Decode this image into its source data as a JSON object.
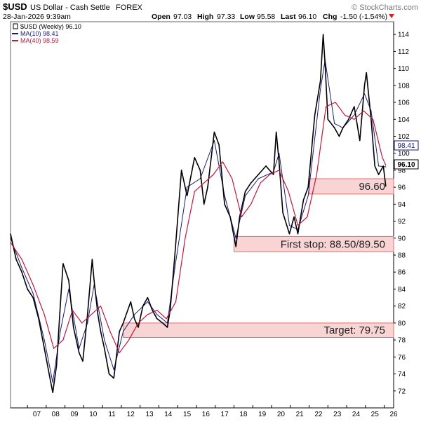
{
  "header": {
    "symbol": "$USD",
    "name": "US Dollar - Cash Settle",
    "exchange": "FOREX",
    "watermark": "© StockCharts.com",
    "date": "28-Jan-2026 9:39am",
    "open_label": "Open",
    "open": "97.03",
    "high_label": "High",
    "high": "97.33",
    "low_label": "Low",
    "low": "95.58",
    "last_label": "Last",
    "last": "96.10",
    "chg_label": "Chg",
    "chg": "-1.50 (-1.54%)"
  },
  "legend": [
    {
      "label": "$USD (Weekly) 96.10",
      "color": "#000000"
    },
    {
      "label": "MA(10) 98.41",
      "color": "#1a1a7a"
    },
    {
      "label": "MA(40) 98.59",
      "color": "#c0183c"
    }
  ],
  "price_tags": {
    "ma": "98.41",
    "last": "96.10"
  },
  "colors": {
    "price": "#000000",
    "ma10": "#1a1a7a",
    "ma40": "#c0183c",
    "band_fill": "#f8d4d4",
    "band_stroke": "#e46a6a",
    "down": "#d42020"
  },
  "chart_data": {
    "type": "line",
    "title": "$USD US Dollar - Cash Settle FOREX",
    "ylim": [
      70,
      115.5
    ],
    "xlim": [
      2006.1,
      2026.5
    ],
    "y_ticks": [
      "72",
      "74",
      "76",
      "78",
      "80",
      "82",
      "84",
      "86",
      "88",
      "90",
      "92",
      "94",
      "96",
      "98",
      "100",
      "102",
      "104",
      "106",
      "108",
      "110",
      "112",
      "114"
    ],
    "x_ticks": [
      {
        "label": "07",
        "x": 2007.0
      },
      {
        "label": "08",
        "x": 2008.0
      },
      {
        "label": "09",
        "x": 2009.0
      },
      {
        "label": "10",
        "x": 2010.0
      },
      {
        "label": "11",
        "x": 2011.0
      },
      {
        "label": "12",
        "x": 2012.0
      },
      {
        "label": "13",
        "x": 2013.0
      },
      {
        "label": "14",
        "x": 2014.0
      },
      {
        "label": "15",
        "x": 2015.0
      },
      {
        "label": "16",
        "x": 2016.0
      },
      {
        "label": "17",
        "x": 2017.0
      },
      {
        "label": "18",
        "x": 2018.0
      },
      {
        "label": "19",
        "x": 2019.0
      },
      {
        "label": "20",
        "x": 2020.0
      },
      {
        "label": "21",
        "x": 2021.0
      },
      {
        "label": "22",
        "x": 2022.0
      },
      {
        "label": "23",
        "x": 2023.0
      },
      {
        "label": "24",
        "x": 2024.0
      },
      {
        "label": "25",
        "x": 2025.0
      },
      {
        "label": "26",
        "x": 2026.0
      }
    ],
    "series": [
      {
        "name": "$USD (Weekly)",
        "x": [
          2006.1,
          2006.4,
          2006.7,
          2007.0,
          2007.3,
          2007.6,
          2007.9,
          2008.2,
          2008.35,
          2008.55,
          2008.75,
          2008.9,
          2009.2,
          2009.45,
          2009.75,
          2009.95,
          2010.2,
          2010.45,
          2010.55,
          2010.75,
          2010.9,
          2011.1,
          2011.35,
          2011.6,
          2011.9,
          2012.1,
          2012.5,
          2012.7,
          2012.9,
          2013.15,
          2013.4,
          2013.65,
          2013.9,
          2014.2,
          2014.45,
          2014.6,
          2014.85,
          2015.2,
          2015.5,
          2015.9,
          2016.2,
          2016.4,
          2016.6,
          2016.95,
          2017.2,
          2017.5,
          2017.8,
          2018.1,
          2018.3,
          2018.6,
          2018.9,
          2019.3,
          2019.7,
          2020.1,
          2020.25,
          2020.4,
          2020.6,
          2020.95,
          2021.2,
          2021.4,
          2021.7,
          2021.95,
          2022.3,
          2022.6,
          2022.75,
          2022.85,
          2023.0,
          2023.35,
          2023.6,
          2023.8,
          2024.1,
          2024.4,
          2024.7,
          2024.95,
          2025.05,
          2025.3,
          2025.5,
          2025.7,
          2025.95,
          2026.08
        ],
        "values": [
          90.5,
          87.5,
          86.0,
          84.0,
          83.0,
          80.5,
          77.0,
          73.5,
          71.8,
          75.0,
          82.0,
          87.0,
          85.0,
          79.5,
          76.5,
          75.5,
          81.0,
          87.5,
          85.0,
          81.0,
          79.0,
          77.0,
          74.0,
          73.5,
          79.0,
          80.0,
          82.5,
          80.5,
          79.5,
          82.0,
          83.0,
          81.5,
          80.5,
          80.0,
          79.5,
          81.5,
          88.0,
          98.0,
          95.0,
          99.5,
          98.0,
          94.0,
          96.0,
          102.5,
          101.0,
          94.0,
          92.5,
          89.0,
          92.5,
          95.5,
          96.5,
          97.5,
          98.5,
          97.5,
          102.5,
          99.0,
          93.0,
          90.5,
          92.5,
          90.5,
          94.5,
          96.0,
          104.5,
          108.5,
          114.0,
          110.5,
          104.0,
          103.0,
          102.0,
          103.0,
          104.0,
          105.5,
          101.5,
          108.0,
          109.5,
          104.0,
          98.5,
          97.5,
          98.5,
          96.1
        ]
      },
      {
        "name": "MA(10)",
        "x": [
          2006.1,
          2006.7,
          2007.3,
          2007.9,
          2008.35,
          2008.75,
          2009.2,
          2009.75,
          2010.2,
          2010.55,
          2011.1,
          2011.6,
          2012.1,
          2012.7,
          2013.4,
          2013.9,
          2014.45,
          2014.85,
          2015.5,
          2016.2,
          2016.95,
          2017.5,
          2018.1,
          2018.6,
          2019.3,
          2020.1,
          2020.4,
          2020.95,
          2021.4,
          2021.95,
          2022.6,
          2022.85,
          2023.35,
          2023.8,
          2024.4,
          2024.95,
          2025.3,
          2025.7,
          2026.08
        ],
        "values": [
          90.0,
          86.5,
          83.5,
          78.0,
          73.0,
          79.0,
          84.0,
          77.0,
          80.0,
          84.5,
          78.0,
          74.5,
          79.0,
          81.0,
          82.5,
          81.0,
          80.0,
          86.5,
          96.0,
          97.0,
          101.5,
          95.0,
          90.0,
          95.0,
          97.0,
          97.8,
          100.0,
          91.5,
          91.0,
          95.0,
          107.5,
          111.0,
          103.5,
          103.0,
          104.5,
          107.0,
          105.0,
          98.5,
          98.41
        ]
      },
      {
        "name": "MA(40)",
        "x": [
          2006.1,
          2006.7,
          2007.3,
          2007.9,
          2008.4,
          2008.9,
          2009.4,
          2009.9,
          2010.4,
          2010.9,
          2011.4,
          2011.9,
          2012.4,
          2012.9,
          2013.4,
          2013.9,
          2014.4,
          2014.9,
          2015.4,
          2015.9,
          2016.4,
          2016.9,
          2017.4,
          2017.9,
          2018.4,
          2018.9,
          2019.4,
          2019.9,
          2020.4,
          2020.9,
          2021.4,
          2021.9,
          2022.4,
          2022.9,
          2023.4,
          2023.9,
          2024.4,
          2024.9,
          2025.4,
          2025.9,
          2026.08
        ],
        "values": [
          89.5,
          87.5,
          84.5,
          81.0,
          77.0,
          78.0,
          81.5,
          80.0,
          81.0,
          82.0,
          79.0,
          76.5,
          78.0,
          80.0,
          81.0,
          81.5,
          80.5,
          82.5,
          90.0,
          95.5,
          96.5,
          97.5,
          99.0,
          97.0,
          92.5,
          94.0,
          96.5,
          97.5,
          98.0,
          95.5,
          91.5,
          92.5,
          97.5,
          105.5,
          106.0,
          104.5,
          104.0,
          105.0,
          104.0,
          99.5,
          98.59
        ]
      }
    ],
    "bands": [
      {
        "label": "96.60",
        "from": 2022.0,
        "to": 2026.5,
        "ylow": 95.2,
        "yhigh": 97.0
      },
      {
        "label": "First stop: 88.50/89.50",
        "from": 2018.0,
        "to": 2026.5,
        "ylow": 88.4,
        "yhigh": 90.2
      },
      {
        "label": "Target: 79.75",
        "from": 2012.1,
        "to": 2026.5,
        "ylow": 78.3,
        "yhigh": 80.0
      }
    ]
  }
}
